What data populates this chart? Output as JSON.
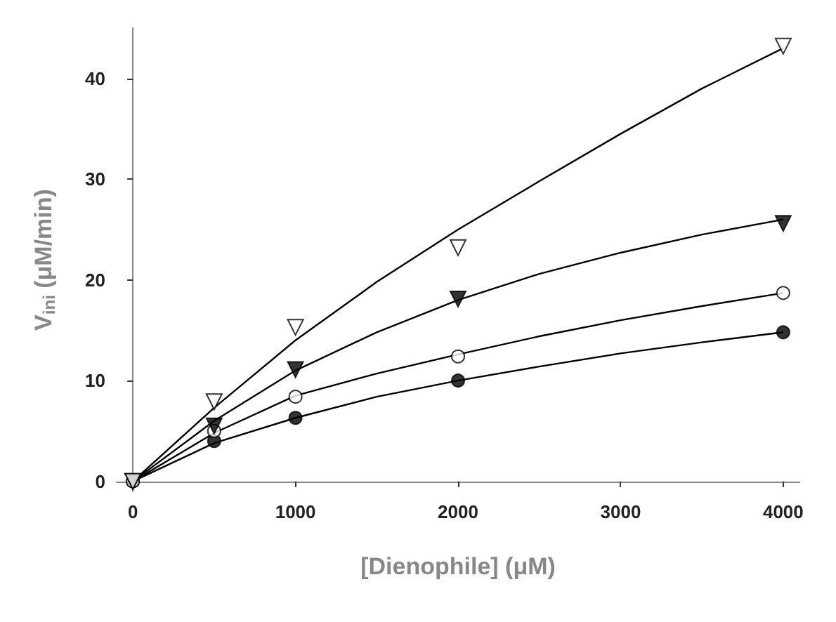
{
  "chart_data": {
    "type": "scatter",
    "xlabel": "[Dienophile] (μM)",
    "ylabel": "V$_{ini}$ (μM/min)",
    "xlim": [
      -100,
      4100
    ],
    "ylim": [
      -1,
      45
    ],
    "xticks": [
      0,
      1000,
      2000,
      3000,
      4000
    ],
    "yticks": [
      0,
      10,
      20,
      30,
      40
    ],
    "grid": false,
    "series": [
      {
        "marker": "circle",
        "color": "#000000",
        "x": [
          0,
          500,
          1000,
          2000,
          4000
        ],
        "values": [
          0,
          4,
          6.3,
          10,
          14.8
        ]
      },
      {
        "marker": "circle",
        "color": "#ffffff",
        "x": [
          0,
          500,
          1000,
          2000,
          4000
        ],
        "values": [
          0,
          5,
          8.4,
          12.4,
          18.7
        ]
      },
      {
        "marker": "triangle",
        "color": "#000000",
        "x": [
          0,
          500,
          1000,
          2000,
          4000
        ],
        "values": [
          0,
          5.5,
          11.1,
          18.1,
          25.6
        ]
      },
      {
        "marker": "triangle",
        "color": "#ffffff",
        "x": [
          0,
          500,
          1000,
          2000,
          4000
        ],
        "values": [
          0,
          7.9,
          15.3,
          23.2,
          43.2
        ]
      },
      {
        "type": "line",
        "marker": "none",
        "color": "#000000",
        "x": [
          0,
          500,
          1000,
          1500,
          2000,
          2500,
          3000,
          3500,
          4000
        ],
        "values": [
          0,
          7.3,
          14,
          19.8,
          25,
          29.8,
          34.5,
          39,
          43
        ]
      },
      {
        "type": "line",
        "marker": "none",
        "color": "#000000",
        "x": [
          0,
          500,
          1000,
          1500,
          2000,
          2500,
          3000,
          3500,
          4000
        ],
        "values": [
          0,
          6,
          11,
          14.8,
          18,
          20.6,
          22.7,
          24.5,
          26
        ]
      },
      {
        "type": "line",
        "marker": "none",
        "color": "#000000",
        "x": [
          0,
          500,
          1000,
          1500,
          2000,
          2500,
          3000,
          3500,
          4000
        ],
        "values": [
          0,
          4.8,
          8.5,
          10.7,
          12.6,
          14.4,
          16,
          17.4,
          18.7
        ]
      },
      {
        "type": "line",
        "marker": "none",
        "color": "#000000",
        "x": [
          0,
          500,
          1000,
          1500,
          2000,
          2500,
          3000,
          3500,
          4000
        ],
        "values": [
          0,
          3.8,
          6.3,
          8.4,
          10,
          11.4,
          12.7,
          13.8,
          14.8
        ]
      }
    ]
  }
}
